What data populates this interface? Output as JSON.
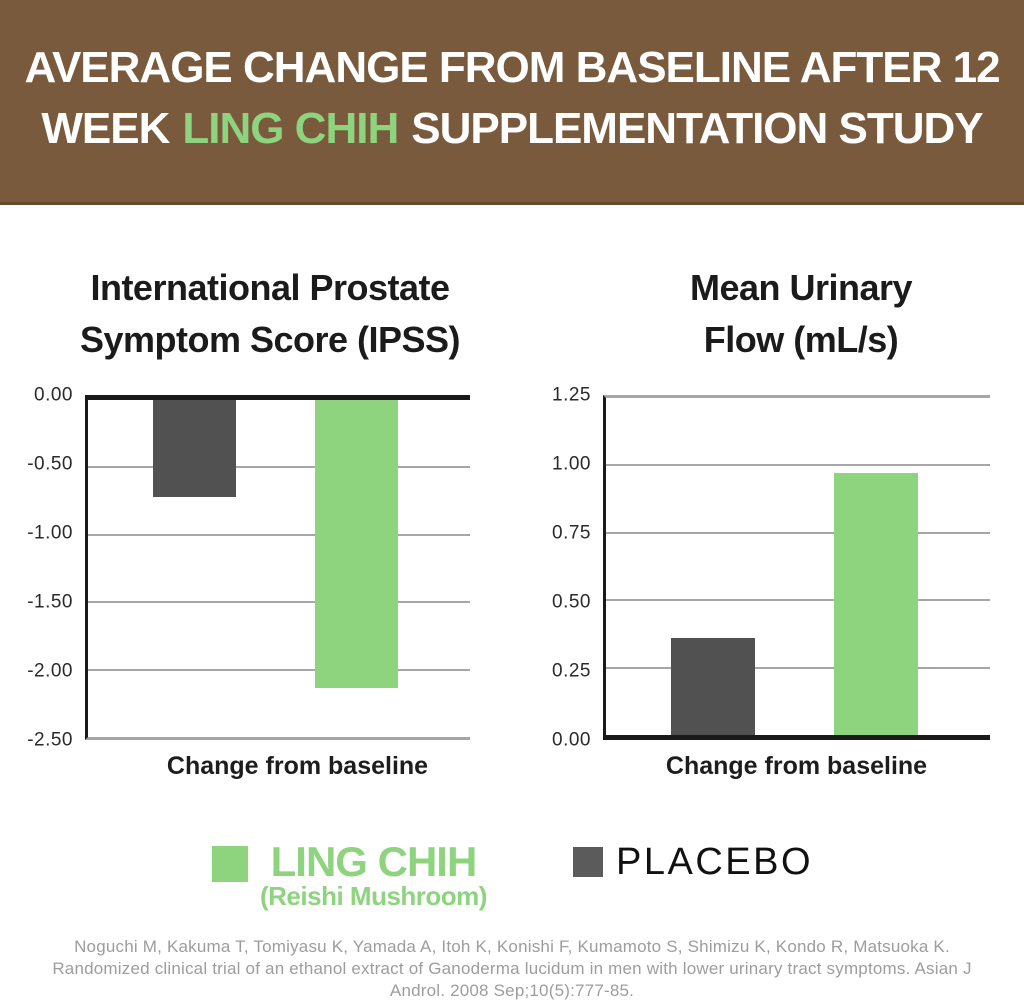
{
  "header": {
    "line1": "AVERAGE CHANGE FROM BASELINE AFTER 12",
    "line2_prefix": "WEEK",
    "line2_highlight": "LING CHIH",
    "line2_suffix": "SUPPLEMENTATION STUDY",
    "bg_color": "#7a5a3c",
    "text_color": "#ffffff",
    "highlight_color": "#8ed47e"
  },
  "chart_data": [
    {
      "type": "bar",
      "title": "International Prostate Symptom Score (IPSS)",
      "title_lines": [
        "International Prostate",
        "Symptom Score (IPSS)"
      ],
      "xlabel": "Change from baseline",
      "ylabel": "",
      "ylim": [
        -2.5,
        0
      ],
      "yticks": [
        0,
        -0.5,
        -1.0,
        -1.5,
        -2.0,
        -2.5
      ],
      "ytick_labels": [
        "0.00",
        "-0.50",
        "-1.00",
        "-1.50",
        "-2.00",
        "-2.50"
      ],
      "categories": [
        "Change from baseline"
      ],
      "series": [
        {
          "name": "PLACEBO",
          "value": -0.72,
          "color": "#515151"
        },
        {
          "name": "LING CHIH",
          "value": -2.14,
          "color": "#8ed47e"
        }
      ],
      "grid": true,
      "legend_position": "below"
    },
    {
      "type": "bar",
      "title": "Mean Urinary Flow (mL/s)",
      "title_lines": [
        "Mean Urinary",
        "Flow (mL/s)"
      ],
      "xlabel": "Change from baseline",
      "ylabel": "",
      "ylim": [
        0,
        1.25
      ],
      "yticks": [
        1.25,
        1.0,
        0.75,
        0.5,
        0.25,
        0
      ],
      "ytick_labels": [
        "1.25",
        "1.00",
        "0.75",
        "0.50",
        "0.25",
        "0.00"
      ],
      "categories": [
        "Change from baseline"
      ],
      "series": [
        {
          "name": "PLACEBO",
          "value": 0.36,
          "color": "#515151"
        },
        {
          "name": "LING CHIH",
          "value": 0.97,
          "color": "#8ed47e"
        }
      ],
      "grid": true,
      "legend_position": "below"
    }
  ],
  "legend": {
    "ling_chih": {
      "label": "LING CHIH",
      "sublabel": "(Reishi Mushroom)",
      "color": "#8ed47e"
    },
    "placebo": {
      "label": "PLACEBO",
      "color": "#5b5b5b"
    }
  },
  "citation": {
    "lines": [
      "Noguchi M, Kakuma T, Tomiyasu K, Yamada A, Itoh K, Konishi F, Kumamoto S, Shimizu K, Kondo R, Matsuoka K.",
      "Randomized clinical trial of an ethanol extract of Ganoderma lucidum in men with lower urinary tract symptoms. Asian J",
      "Androl. 2008 Sep;10(5):777-85."
    ],
    "color": "#9d9d9d"
  }
}
